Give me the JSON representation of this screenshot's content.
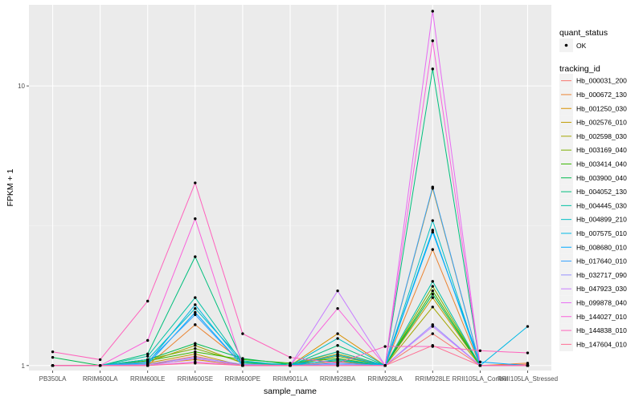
{
  "chart_data": {
    "type": "line",
    "xlabel": "sample_name",
    "ylabel": "FPKM + 1",
    "y_scale": "log10",
    "ylim": [
      0.96,
      19.5
    ],
    "y_ticks": [
      1,
      10
    ],
    "y_tick_labels": [
      "1",
      "10"
    ],
    "grid": true,
    "categories": [
      "PB350LA",
      "RRIM600LA",
      "RRIM600LE",
      "RRIM600SE",
      "RRIM600PE",
      "RRIM901LA",
      "RRIM928BA",
      "RRIM928LA",
      "RRIM928LE",
      "RRII105LA_Control",
      "RRII105LA_Stressed"
    ],
    "legend": {
      "position": "right",
      "point_title": "quant_status",
      "point_label": "OK",
      "series_title": "tracking_id"
    },
    "series": [
      {
        "name": "Hb_000031_200",
        "color": "#F8766D",
        "values": [
          1.0,
          1.0,
          1.01,
          1.08,
          1.0,
          1.0,
          1.03,
          1.0,
          1.3,
          1.0,
          1.01
        ]
      },
      {
        "name": "Hb_000672_130",
        "color": "#EA8331",
        "values": [
          1.0,
          1.0,
          1.0,
          1.4,
          1.03,
          1.0,
          1.05,
          1.0,
          2.6,
          1.0,
          1.02
        ]
      },
      {
        "name": "Hb_001250_030",
        "color": "#D89000",
        "values": [
          1.0,
          1.0,
          1.01,
          1.05,
          1.0,
          1.0,
          1.3,
          1.0,
          4.3,
          1.0,
          1.0
        ]
      },
      {
        "name": "Hb_002576_010",
        "color": "#C09B00",
        "values": [
          1.0,
          1.0,
          1.02,
          1.1,
          1.0,
          1.0,
          1.12,
          1.0,
          1.75,
          1.0,
          1.0
        ]
      },
      {
        "name": "Hb_002598_030",
        "color": "#A3A500",
        "values": [
          1.0,
          1.0,
          1.03,
          1.18,
          1.02,
          1.0,
          1.1,
          1.0,
          1.62,
          1.0,
          1.0
        ]
      },
      {
        "name": "Hb_003169_040",
        "color": "#7CAE00",
        "values": [
          1.0,
          1.0,
          1.05,
          1.15,
          1.03,
          1.0,
          1.08,
          1.0,
          1.92,
          1.0,
          1.0
        ]
      },
      {
        "name": "Hb_003414_040",
        "color": "#39B600",
        "values": [
          1.0,
          1.0,
          1.04,
          1.12,
          1.05,
          1.02,
          1.06,
          1.0,
          1.85,
          1.0,
          1.0
        ]
      },
      {
        "name": "Hb_003900_040",
        "color": "#00BB4E",
        "values": [
          1.07,
          1.0,
          1.05,
          1.2,
          1.06,
          1.01,
          1.04,
          1.0,
          1.8,
          1.0,
          1.0
        ]
      },
      {
        "name": "Hb_004052_130",
        "color": "#00BF7D",
        "values": [
          1.0,
          1.0,
          1.1,
          2.45,
          1.03,
          1.0,
          1.18,
          1.0,
          11.5,
          1.0,
          1.0
        ]
      },
      {
        "name": "Hb_004445_030",
        "color": "#00C1A3",
        "values": [
          1.0,
          1.0,
          1.08,
          1.75,
          1.02,
          1.01,
          1.12,
          1.0,
          2.0,
          1.0,
          1.0
        ]
      },
      {
        "name": "Hb_004899_210",
        "color": "#00BFC4",
        "values": [
          1.0,
          1.0,
          1.05,
          1.6,
          1.04,
          1.0,
          1.25,
          1.0,
          3.3,
          1.0,
          1.0
        ]
      },
      {
        "name": "Hb_007575_010",
        "color": "#00B8E5",
        "values": [
          1.0,
          1.0,
          1.02,
          1.65,
          1.01,
          1.0,
          1.05,
          1.0,
          3.05,
          1.0,
          1.38
        ]
      },
      {
        "name": "Hb_008680_010",
        "color": "#00A9FF",
        "values": [
          1.0,
          1.0,
          1.01,
          1.55,
          1.0,
          1.0,
          1.09,
          1.0,
          3.0,
          1.03,
          1.0
        ]
      },
      {
        "name": "Hb_017640_010",
        "color": "#35A2FF",
        "values": [
          1.0,
          1.0,
          1.03,
          1.52,
          1.0,
          1.0,
          1.02,
          1.0,
          4.35,
          1.0,
          1.0
        ]
      },
      {
        "name": "Hb_032717_090",
        "color": "#9590FF",
        "values": [
          1.0,
          1.0,
          1.01,
          1.07,
          1.01,
          1.0,
          1.01,
          1.0,
          1.4,
          1.0,
          1.0
        ]
      },
      {
        "name": "Hb_047923_030",
        "color": "#C77CFF",
        "values": [
          1.0,
          1.0,
          1.0,
          1.06,
          1.0,
          1.0,
          1.85,
          1.0,
          1.38,
          1.0,
          1.0
        ]
      },
      {
        "name": "Hb_099878_040",
        "color": "#E76BF3",
        "values": [
          1.0,
          1.0,
          1.0,
          1.03,
          1.0,
          1.0,
          1.0,
          1.0,
          18.5,
          1.0,
          1.0
        ]
      },
      {
        "name": "Hb_144027_010",
        "color": "#FA62DB",
        "values": [
          1.0,
          1.0,
          1.23,
          3.35,
          1.0,
          1.0,
          1.6,
          1.0,
          14.5,
          1.0,
          1.0
        ]
      },
      {
        "name": "Hb_144838_010",
        "color": "#FF62BC",
        "values": [
          1.12,
          1.05,
          1.7,
          4.5,
          1.3,
          1.07,
          1.02,
          1.17,
          1.17,
          1.13,
          1.11
        ]
      },
      {
        "name": "Hb_147604_010",
        "color": "#FF6C91",
        "values": [
          1.0,
          1.0,
          1.0,
          1.02,
          1.0,
          1.0,
          1.0,
          1.0,
          1.18,
          1.0,
          1.0
        ]
      }
    ]
  }
}
